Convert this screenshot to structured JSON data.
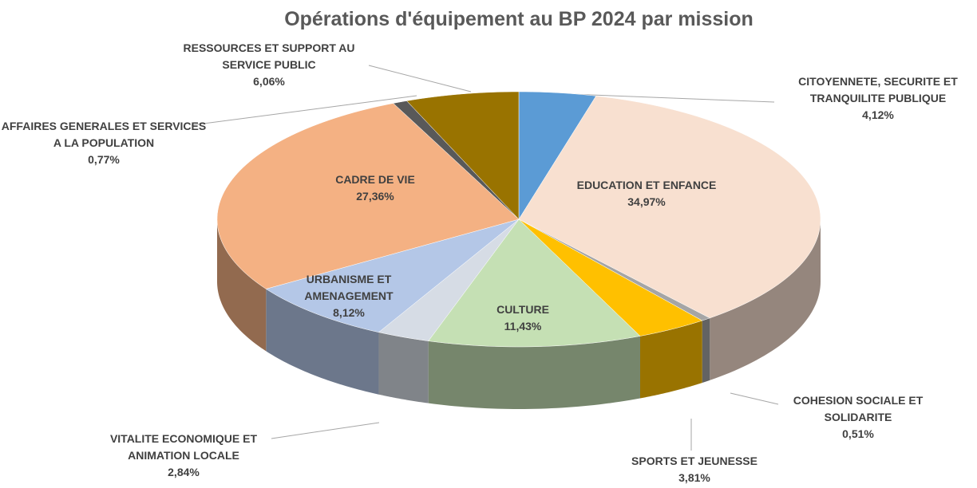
{
  "chart_data": {
    "type": "pie",
    "title": "Opérations d'équipement au BP 2024 par mission",
    "categories": [
      "CITOYENNETE, SECURITE ET TRANQUILITE PUBLIQUE",
      "EDUCATION ET ENFANCE",
      "COHESION SOCIALE ET SOLIDARITE",
      "SPORTS ET JEUNESSE",
      "CULTURE",
      "VITALITE ECONOMIQUE ET ANIMATION LOCALE",
      "URBANISME ET AMENAGEMENT",
      "CADRE DE VIE",
      "AFFAIRES GENERALES ET SERVICES A LA POPULATION",
      "RESSOURCES ET SUPPORT AU SERVICE PUBLIC"
    ],
    "values": [
      4.12,
      34.97,
      0.51,
      3.81,
      11.43,
      2.84,
      8.12,
      27.36,
      0.77,
      6.06
    ],
    "value_labels": [
      "4,12%",
      "34,97%",
      "0,51%",
      "3,81%",
      "11,43%",
      "2,84%",
      "8,12%",
      "27,36%",
      "0,77%",
      "6,06%"
    ],
    "colors": [
      "#5b9bd5",
      "#f8e0d0",
      "#a5a5a5",
      "#ffc000",
      "#c5e0b4",
      "#d6dce5",
      "#b4c7e7",
      "#f4b183",
      "#595959",
      "#997300"
    ]
  }
}
